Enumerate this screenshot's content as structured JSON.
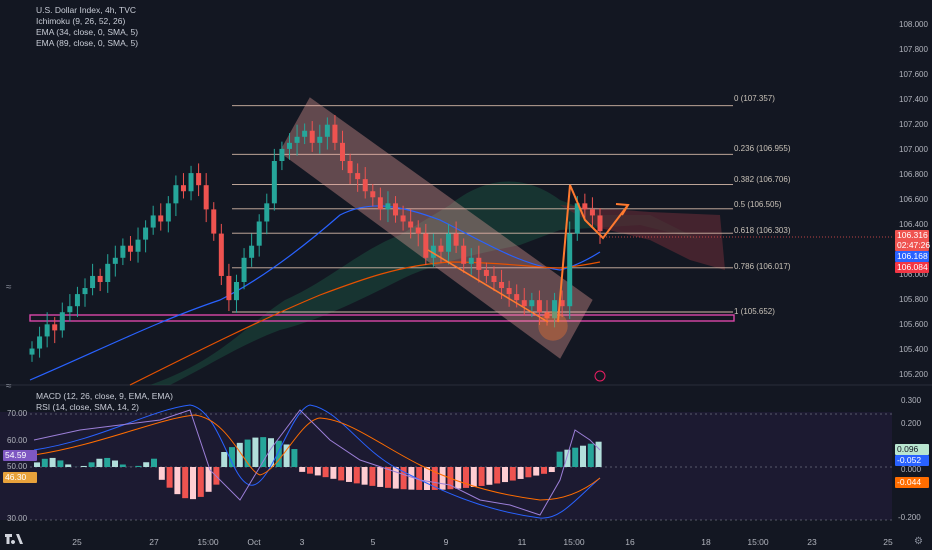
{
  "legend_main": {
    "title": "U.S. Dollar Index, 4h, TVC",
    "ind1": "Ichimoku (9, 26, 52, 26)",
    "ind2": "EMA (34, close, 0, SMA, 5)",
    "ind3": "EMA (89, close, 0, SMA, 5)"
  },
  "legend_sub": {
    "ind1": "MACD (12, 26, close, 9, EMA, EMA)",
    "ind2": "RSI (14, close, SMA, 14, 2)"
  },
  "price_scale": [
    "108.000",
    "107.800",
    "107.600",
    "107.400",
    "107.200",
    "107.000",
    "106.800",
    "106.600",
    "106.400",
    "106.000",
    "105.800",
    "105.600",
    "105.400",
    "105.200"
  ],
  "sub_scale_right": [
    "0.300",
    "0.200",
    "0.100",
    "0.000",
    "-0.100",
    "-0.200"
  ],
  "sub_scale_left": [
    "70.00",
    "60.00",
    "50.00",
    "30.00"
  ],
  "price_tags": {
    "last": "106.316",
    "countdown": "02:47:26",
    "ema34": "106.168",
    "ema89": "106.084"
  },
  "sub_tags": {
    "rsi": "54.59",
    "rsi_ma": "46.30",
    "macd_hist": "0.096",
    "macd": "-0.052",
    "macd_zero": "0.000",
    "macd_signal": "-0.044"
  },
  "fib_levels": [
    {
      "label": "0 (107.357)",
      "price": 107.357
    },
    {
      "label": "0.236 (106.955)",
      "price": 106.955
    },
    {
      "label": "0.382 (106.706)",
      "price": 106.706
    },
    {
      "label": "0.5 (106.505)",
      "price": 106.505
    },
    {
      "label": "0.618 (106.303)",
      "price": 106.303
    },
    {
      "label": "0.786 (106.017)",
      "price": 106.017
    },
    {
      "label": "1 (105.652)",
      "price": 105.652
    }
  ],
  "x_axis": [
    "25",
    "27",
    "15:00",
    "Oct",
    "3",
    "5",
    "9",
    "11",
    "15:00",
    "16",
    "18",
    "15:00",
    "23",
    "25"
  ],
  "colors": {
    "up": "#26a69a",
    "down": "#ef5350",
    "ema34": "#2962ff",
    "ema89": "#e65100",
    "fib": "#d4b8a8",
    "support": "#d946a8",
    "channel": "#f4a6a0",
    "arrow": "#ff7a2f",
    "rsi": "#9c7fd8",
    "background": "#131722"
  },
  "chart_data": {
    "type": "candlestick",
    "symbol": "U.S. Dollar Index",
    "interval": "4h",
    "source": "TVC",
    "ylim": [
      105.15,
      108.1
    ],
    "ohlc_close_path": [
      105.35,
      105.45,
      105.55,
      105.5,
      105.65,
      105.7,
      105.8,
      105.85,
      105.95,
      105.9,
      106.05,
      106.1,
      106.2,
      106.15,
      106.25,
      106.35,
      106.45,
      106.4,
      106.55,
      106.7,
      106.65,
      106.8,
      106.7,
      106.5,
      106.3,
      105.95,
      105.75,
      105.9,
      106.1,
      106.2,
      106.4,
      106.55,
      106.9,
      107.0,
      107.05,
      107.1,
      107.15,
      107.05,
      107.1,
      107.2,
      107.05,
      106.9,
      106.8,
      106.75,
      106.65,
      106.6,
      106.5,
      106.55,
      106.45,
      106.4,
      106.35,
      106.3,
      106.1,
      106.2,
      106.15,
      106.3,
      106.2,
      106.05,
      106.1,
      106.0,
      105.95,
      105.9,
      105.85,
      105.8,
      105.75,
      105.7,
      105.75,
      105.65,
      105.6,
      105.75,
      105.7,
      106.3,
      106.55,
      106.5,
      106.45,
      106.32
    ],
    "rsi_last": 54.59,
    "rsi_ma_last": 46.3,
    "macd_hist_last": 0.096,
    "macd_last": -0.052,
    "macd_signal_last": -0.044
  }
}
